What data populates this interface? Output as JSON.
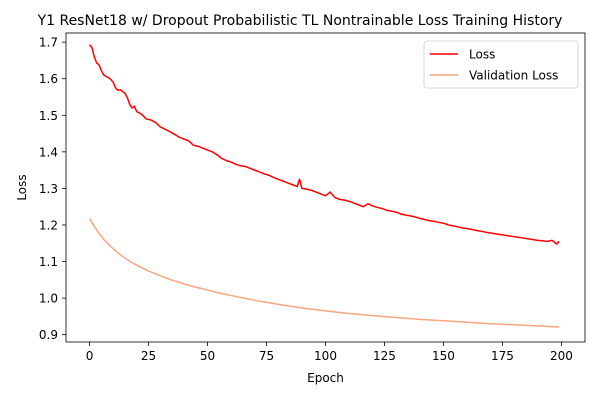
{
  "chart_data": {
    "type": "line",
    "title": "Y1 ResNet18 w/ Dropout Probabilistic TL Nontrainable Loss Training History",
    "xlabel": "Epoch",
    "ylabel": "Loss",
    "xlim": [
      -10,
      210
    ],
    "ylim": [
      0.88,
      1.725
    ],
    "xticks": [
      0,
      25,
      50,
      75,
      100,
      125,
      150,
      175,
      200
    ],
    "yticks": [
      0.9,
      1.0,
      1.1,
      1.2,
      1.3,
      1.4,
      1.5,
      1.6,
      1.7
    ],
    "legend_position": "top-right",
    "series": [
      {
        "name": "Loss",
        "color": "#ff0000",
        "x": [
          0,
          1,
          2,
          3,
          4,
          5,
          6,
          7,
          8,
          9,
          10,
          11,
          12,
          13,
          14,
          15,
          16,
          17,
          18,
          19,
          20,
          22,
          24,
          26,
          28,
          30,
          32,
          34,
          36,
          38,
          40,
          42,
          44,
          46,
          48,
          50,
          52,
          54,
          56,
          58,
          60,
          62,
          64,
          66,
          68,
          70,
          72,
          74,
          76,
          78,
          80,
          82,
          84,
          86,
          88,
          89,
          90,
          92,
          94,
          96,
          98,
          100,
          102,
          104,
          106,
          108,
          110,
          112,
          114,
          116,
          118,
          120,
          122,
          124,
          126,
          128,
          130,
          132,
          134,
          136,
          138,
          140,
          142,
          144,
          146,
          148,
          150,
          152,
          154,
          156,
          158,
          160,
          162,
          164,
          166,
          168,
          170,
          172,
          174,
          176,
          178,
          180,
          182,
          184,
          186,
          188,
          190,
          192,
          194,
          196,
          198,
          199
        ],
        "values": [
          1.693,
          1.685,
          1.66,
          1.643,
          1.638,
          1.622,
          1.61,
          1.606,
          1.603,
          1.598,
          1.59,
          1.575,
          1.568,
          1.57,
          1.565,
          1.56,
          1.548,
          1.53,
          1.52,
          1.525,
          1.51,
          1.503,
          1.49,
          1.487,
          1.48,
          1.468,
          1.462,
          1.455,
          1.448,
          1.44,
          1.435,
          1.43,
          1.418,
          1.415,
          1.41,
          1.405,
          1.4,
          1.392,
          1.382,
          1.376,
          1.372,
          1.366,
          1.362,
          1.36,
          1.355,
          1.35,
          1.345,
          1.34,
          1.336,
          1.33,
          1.325,
          1.32,
          1.315,
          1.31,
          1.305,
          1.325,
          1.3,
          1.298,
          1.295,
          1.29,
          1.285,
          1.28,
          1.29,
          1.275,
          1.27,
          1.268,
          1.265,
          1.26,
          1.255,
          1.25,
          1.258,
          1.252,
          1.248,
          1.245,
          1.24,
          1.238,
          1.235,
          1.23,
          1.227,
          1.225,
          1.222,
          1.218,
          1.215,
          1.212,
          1.21,
          1.207,
          1.205,
          1.2,
          1.198,
          1.195,
          1.192,
          1.19,
          1.188,
          1.185,
          1.183,
          1.18,
          1.178,
          1.176,
          1.174,
          1.172,
          1.17,
          1.168,
          1.166,
          1.164,
          1.162,
          1.16,
          1.158,
          1.157,
          1.155,
          1.158,
          1.148,
          1.155
        ]
      },
      {
        "name": "Validation Loss",
        "color": "#fca480",
        "x": [
          0,
          2,
          4,
          6,
          8,
          10,
          12,
          14,
          16,
          18,
          20,
          25,
          30,
          35,
          40,
          45,
          50,
          55,
          60,
          70,
          80,
          90,
          100,
          110,
          120,
          130,
          140,
          150,
          160,
          170,
          180,
          190,
          199
        ],
        "values": [
          1.218,
          1.196,
          1.177,
          1.161,
          1.147,
          1.135,
          1.124,
          1.114,
          1.105,
          1.097,
          1.09,
          1.074,
          1.061,
          1.049,
          1.039,
          1.03,
          1.022,
          1.014,
          1.007,
          0.994,
          0.983,
          0.973,
          0.965,
          0.958,
          0.952,
          0.947,
          0.942,
          0.938,
          0.934,
          0.93,
          0.927,
          0.924,
          0.921
        ]
      }
    ]
  }
}
